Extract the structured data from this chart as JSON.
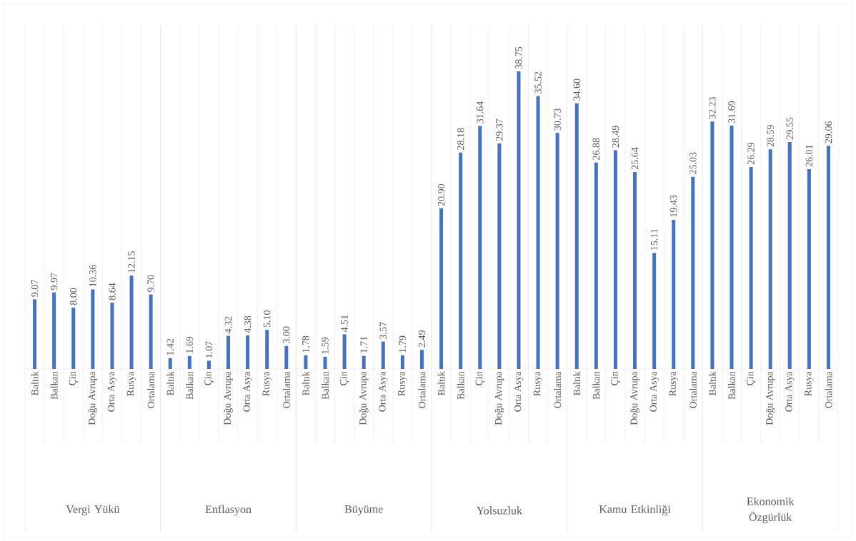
{
  "chart_data": [
    {
      "type": "bar",
      "title": "Vergi Yükü",
      "categories": [
        "Baltık",
        "Balkan",
        "Çin",
        "Doğu Avrupa",
        "Orta Asya",
        "Rusya",
        "Ortalama"
      ],
      "values": [
        9.07,
        9.97,
        8.0,
        10.36,
        8.64,
        12.15,
        9.7
      ],
      "value_labels": [
        "9.07",
        "9.97",
        "8.00",
        "10.36",
        "8.64",
        "12.15",
        "9.70"
      ],
      "color": "#4472c4"
    },
    {
      "type": "bar",
      "title": "Enflasyon",
      "categories": [
        "Baltık",
        "Balkan",
        "Çin",
        "Doğu Avrupa",
        "Orta Asya",
        "Rusya",
        "Ortalama"
      ],
      "values": [
        1.42,
        1.69,
        1.07,
        4.32,
        4.38,
        5.1,
        3.0
      ],
      "value_labels": [
        "1.42",
        "1.69",
        "1.07",
        "4.32",
        "4.38",
        "5.10",
        "3.00"
      ],
      "color": "#4472c4"
    },
    {
      "type": "bar",
      "title": "Büyüme",
      "categories": [
        "Baltık",
        "Balkan",
        "Çin",
        "Doğu Avrupa",
        "Orta Asya",
        "Rusya",
        "Ortalama"
      ],
      "values": [
        1.78,
        1.59,
        4.51,
        1.71,
        3.57,
        1.79,
        2.49
      ],
      "value_labels": [
        "1.78",
        "1.59",
        "4.51",
        "1.71",
        "3.57",
        "1.79",
        "2.49"
      ],
      "color": "#4472c4"
    },
    {
      "type": "bar",
      "title": "Yolsuzluk",
      "categories": [
        "Baltık",
        "Balkan",
        "Çin",
        "Doğu Avrupa",
        "Orta Asya",
        "Rusya",
        "Ortalama"
      ],
      "values": [
        20.9,
        28.18,
        31.64,
        29.37,
        38.75,
        35.52,
        30.73
      ],
      "value_labels": [
        "20.90",
        "28.18",
        "31.64",
        "29.37",
        "38.75",
        "35.52",
        "30.73"
      ],
      "color": "#4472c4"
    },
    {
      "type": "bar",
      "title": "Kamu Etkinliği",
      "categories": [
        "Baltık",
        "Balkan",
        "Çin",
        "Doğu Avrupa",
        "Orta Asya",
        "Rusya",
        "Ortalama"
      ],
      "values": [
        34.6,
        26.88,
        28.49,
        25.64,
        15.11,
        19.43,
        25.03
      ],
      "value_labels": [
        "34.60",
        "26.88",
        "28.49",
        "25.64",
        "15.11",
        "19.43",
        "25.03"
      ],
      "color": "#4472c4"
    },
    {
      "type": "bar",
      "title": "Ekonomik Özgürlük",
      "categories": [
        "Baltık",
        "Balkan",
        "Çin",
        "Doğu Avrupa",
        "Orta Asya",
        "Rusya",
        "Ortalama"
      ],
      "values": [
        32.23,
        31.69,
        26.29,
        28.59,
        29.55,
        26.01,
        29.06
      ],
      "value_labels": [
        "32.23",
        "31.69",
        "26.29",
        "28.59",
        "29.55",
        "26.01",
        "29.06"
      ],
      "color": "#4472c4"
    }
  ]
}
